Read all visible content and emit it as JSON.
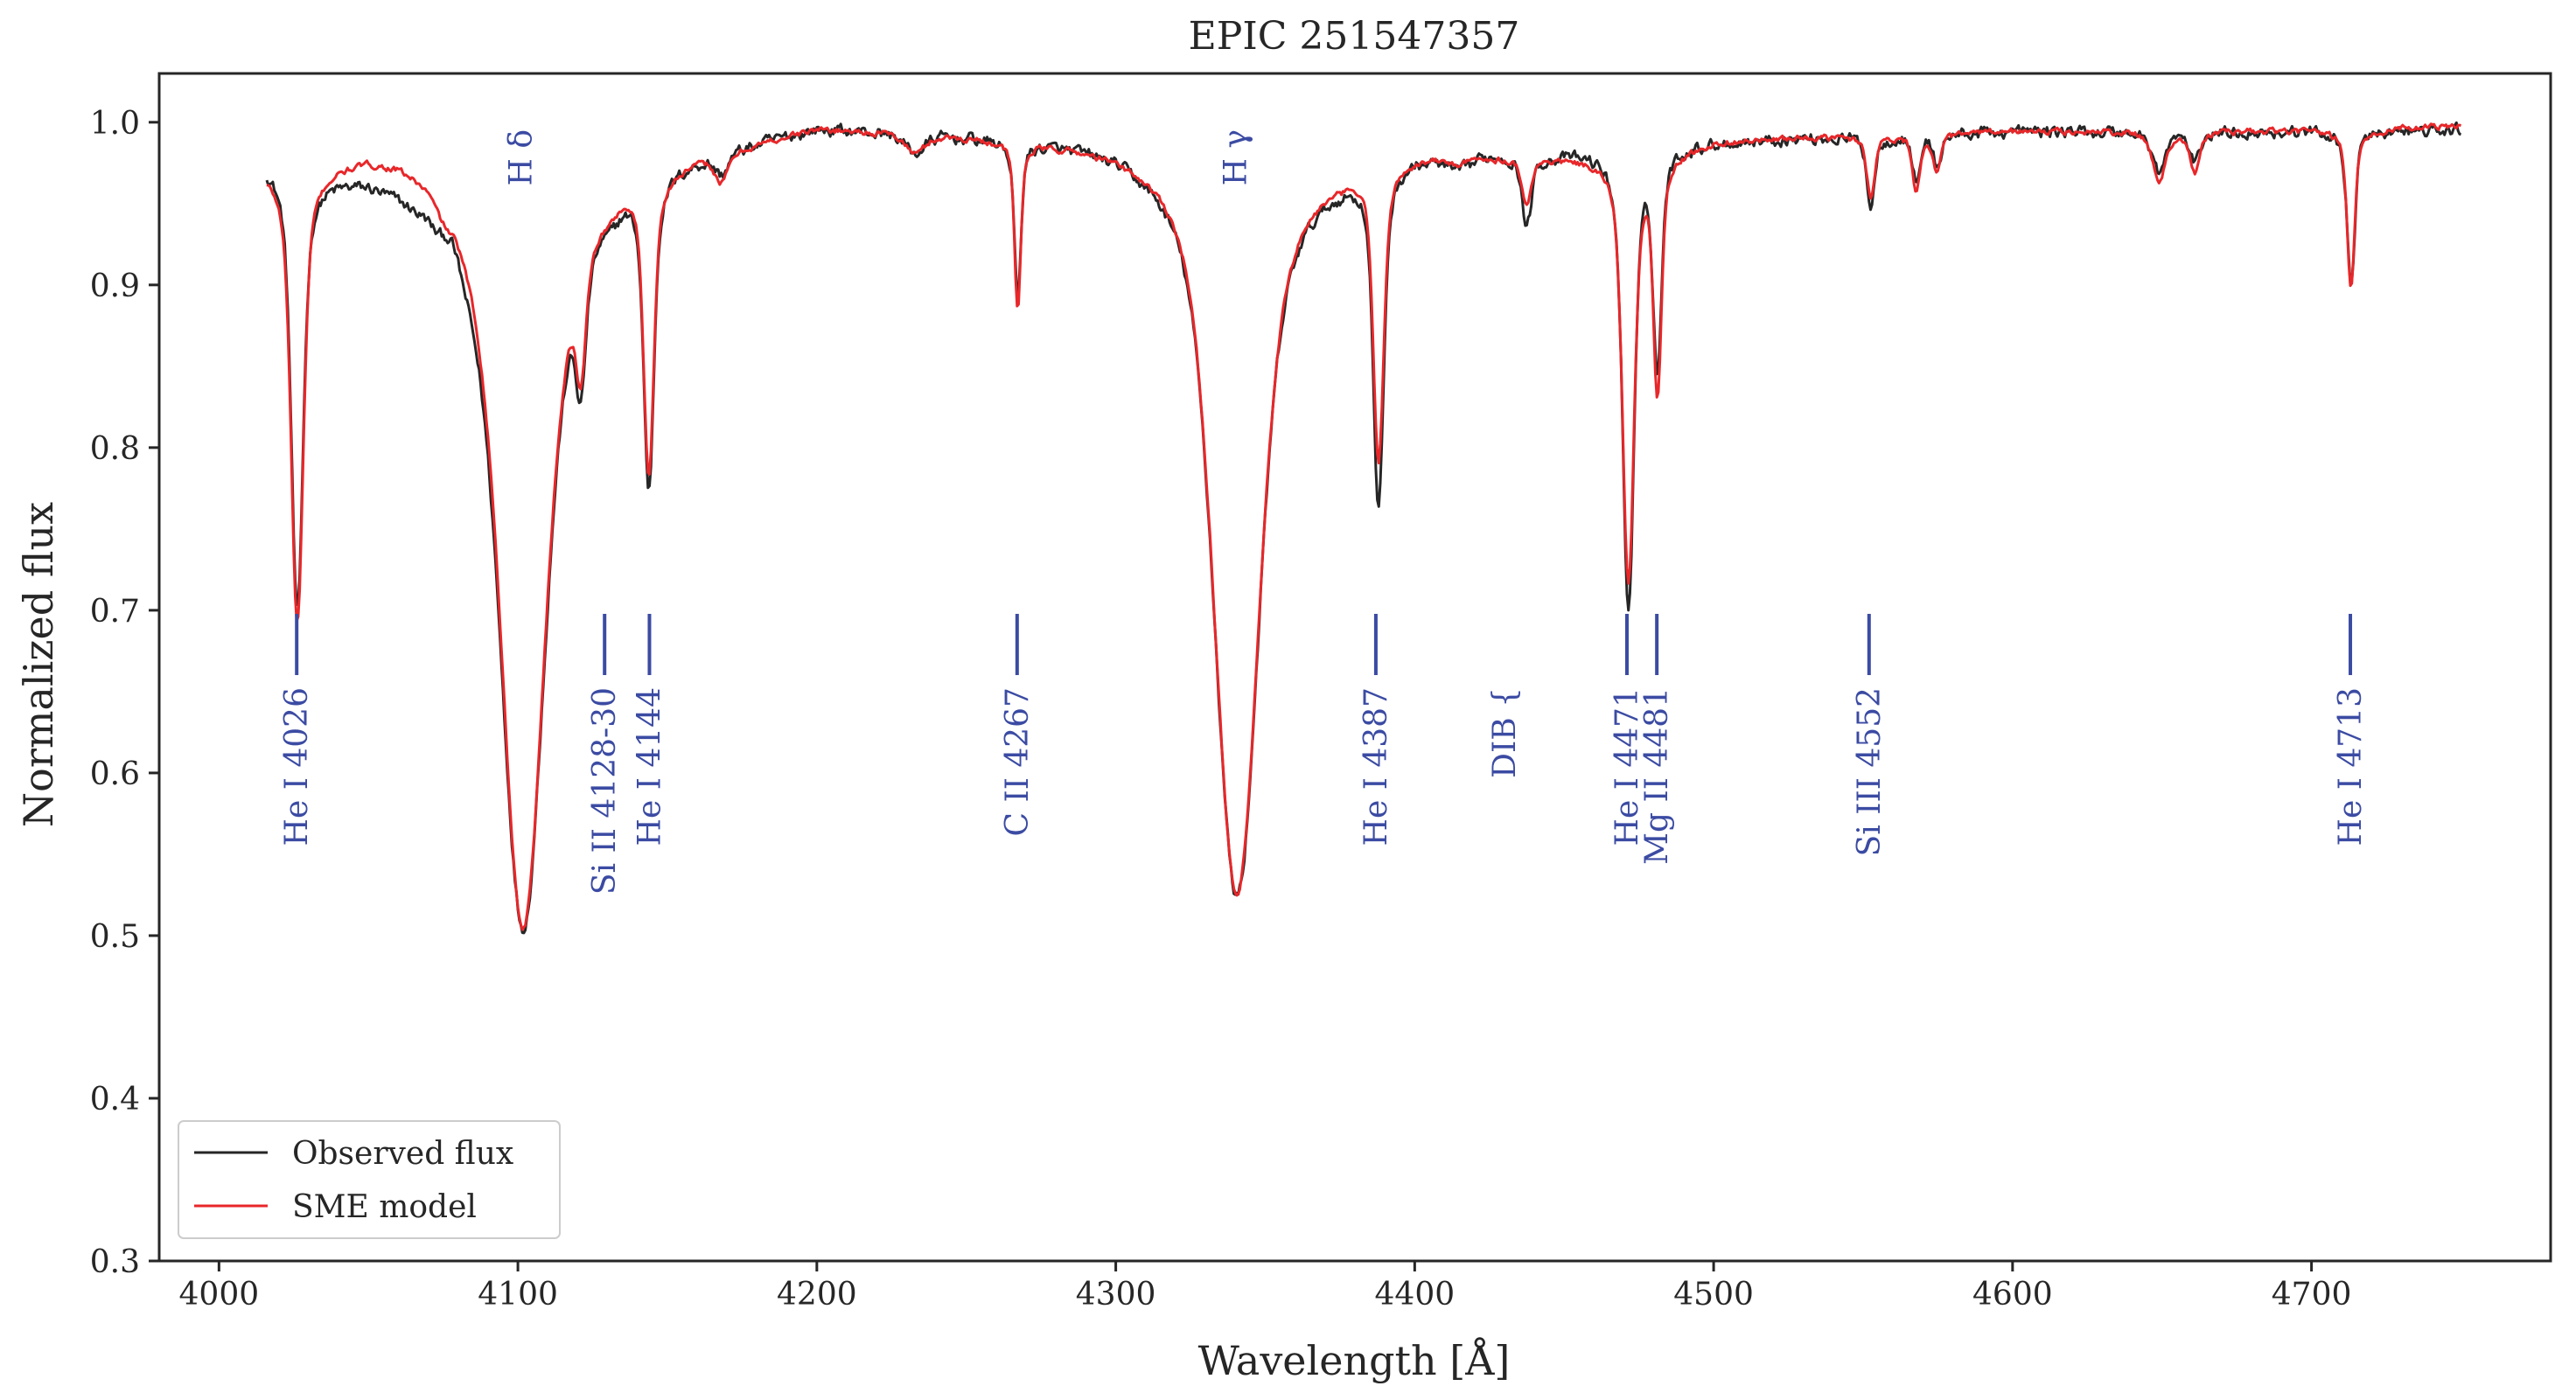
{
  "chart_data": {
    "type": "line",
    "title": "EPIC 251547357",
    "xlabel": "Wavelength [Å]",
    "ylabel": "Normalized flux",
    "xlim": [
      3980,
      4780
    ],
    "ylim": [
      0.3,
      1.03
    ],
    "xticks": [
      4000,
      4100,
      4200,
      4300,
      4400,
      4500,
      4600,
      4700
    ],
    "yticks": [
      0.3,
      0.4,
      0.5,
      0.6,
      0.7,
      0.8,
      0.9,
      1.0
    ],
    "xtick_labels": [
      "4000",
      "4100",
      "4200",
      "4300",
      "4400",
      "4500",
      "4600",
      "4700"
    ],
    "ytick_labels": [
      "0.3",
      "0.4",
      "0.5",
      "0.6",
      "0.7",
      "0.8",
      "0.9",
      "1.0"
    ],
    "grid": false,
    "legend_position": "bottom-left",
    "x_range": [
      4016,
      4750
    ],
    "series": [
      {
        "name": "Observed flux",
        "color": "#262626",
        "continuum": [
          [
            4016,
            0.98
          ],
          [
            4030,
            0.97
          ],
          [
            4050,
            0.97
          ],
          [
            4070,
            0.96
          ],
          [
            4090,
            0.92
          ],
          [
            4095,
            0.91
          ],
          [
            4110,
            0.92
          ],
          [
            4125,
            0.95
          ],
          [
            4135,
            0.97
          ],
          [
            4150,
            0.98
          ],
          [
            4200,
            1.0
          ],
          [
            4300,
            0.99
          ],
          [
            4320,
            0.98
          ],
          [
            4360,
            0.97
          ],
          [
            4400,
            0.985
          ],
          [
            4420,
            0.98
          ],
          [
            4460,
            0.985
          ],
          [
            4500,
            0.99
          ],
          [
            4600,
            0.995
          ],
          [
            4700,
            0.995
          ],
          [
            4750,
            0.995
          ]
        ],
        "lines": [
          [
            4026.2,
            0.7,
            1.8
          ],
          [
            4077.0,
            0.96,
            2.5
          ],
          [
            4101.7,
            0.505,
            6.5
          ],
          [
            4121.0,
            0.87,
            1.5
          ],
          [
            4128.5,
            0.96,
            2.5
          ],
          [
            4143.8,
            0.785,
            1.6
          ],
          [
            4168.0,
            0.975,
            2.0
          ],
          [
            4233.0,
            0.985,
            3.0
          ],
          [
            4267.2,
            0.895,
            1.0
          ],
          [
            4340.5,
            0.525,
            7.0
          ],
          [
            4387.9,
            0.77,
            1.6
          ],
          [
            4415.0,
            0.975,
            3.0
          ],
          [
            4428.0,
            0.985,
            6.0
          ],
          [
            4437.5,
            0.94,
            1.5
          ],
          [
            4471.5,
            0.705,
            1.8
          ],
          [
            4481.2,
            0.855,
            1.3
          ],
          [
            4552.6,
            0.95,
            1.2
          ],
          [
            4567.8,
            0.965,
            1.2
          ],
          [
            4574.8,
            0.975,
            1.2
          ],
          [
            4649.0,
            0.97,
            2.0
          ],
          [
            4661.0,
            0.975,
            1.5
          ],
          [
            4713.2,
            0.9,
            1.2
          ]
        ]
      },
      {
        "name": "SME model",
        "color": "#e8272a",
        "continuum": [
          [
            4016,
            0.975
          ],
          [
            4030,
            0.975
          ],
          [
            4050,
            0.985
          ],
          [
            4060,
            0.985
          ],
          [
            4070,
            0.98
          ],
          [
            4090,
            0.94
          ],
          [
            4110,
            0.93
          ],
          [
            4120,
            0.95
          ],
          [
            4135,
            0.975
          ],
          [
            4150,
            0.98
          ],
          [
            4200,
            1.0
          ],
          [
            4300,
            0.99
          ],
          [
            4320,
            0.985
          ],
          [
            4360,
            0.975
          ],
          [
            4400,
            0.985
          ],
          [
            4460,
            0.98
          ],
          [
            4490,
            0.985
          ],
          [
            4500,
            0.99
          ],
          [
            4600,
            0.995
          ],
          [
            4700,
            0.995
          ],
          [
            4750,
            0.998
          ]
        ],
        "lines": [
          [
            4026.2,
            0.695,
            1.9
          ],
          [
            4077.0,
            0.965,
            2.5
          ],
          [
            4101.7,
            0.505,
            6.5
          ],
          [
            4121.0,
            0.88,
            1.5
          ],
          [
            4128.5,
            0.965,
            2.5
          ],
          [
            4143.8,
            0.795,
            1.6
          ],
          [
            4168.0,
            0.97,
            2.0
          ],
          [
            4233.0,
            0.985,
            3.0
          ],
          [
            4267.2,
            0.89,
            1.0
          ],
          [
            4340.5,
            0.525,
            7.0
          ],
          [
            4387.9,
            0.8,
            1.6
          ],
          [
            4415.0,
            0.98,
            3.0
          ],
          [
            4437.5,
            0.955,
            1.5
          ],
          [
            4471.5,
            0.72,
            1.8
          ],
          [
            4481.2,
            0.84,
            1.3
          ],
          [
            4552.6,
            0.955,
            1.2
          ],
          [
            4567.8,
            0.96,
            1.2
          ],
          [
            4574.8,
            0.97,
            1.2
          ],
          [
            4649.0,
            0.965,
            2.0
          ],
          [
            4661.0,
            0.97,
            1.5
          ],
          [
            4713.2,
            0.9,
            1.2
          ]
        ]
      }
    ],
    "annotations": [
      {
        "label": "He I 4026",
        "x": 4026,
        "marker": true
      },
      {
        "label": "H δ",
        "x": 4101,
        "marker": false
      },
      {
        "label": "Si II 4128-30",
        "x": 4129,
        "marker": true
      },
      {
        "label": "He I 4144",
        "x": 4144,
        "marker": true
      },
      {
        "label": "C II 4267",
        "x": 4267,
        "marker": true
      },
      {
        "label": "H γ",
        "x": 4340,
        "marker": false
      },
      {
        "label": "He I 4387",
        "x": 4387,
        "marker": true
      },
      {
        "label": "DIB {",
        "x": 4430,
        "marker": false
      },
      {
        "label": "He I 4471",
        "x": 4471,
        "marker": true
      },
      {
        "label": "Mg II 4481",
        "x": 4481,
        "marker": true
      },
      {
        "label": "Si III 4552",
        "x": 4552,
        "marker": true
      },
      {
        "label": "He I 4713",
        "x": 4713,
        "marker": true
      }
    ],
    "annotation_color": "#3b4ba3"
  }
}
